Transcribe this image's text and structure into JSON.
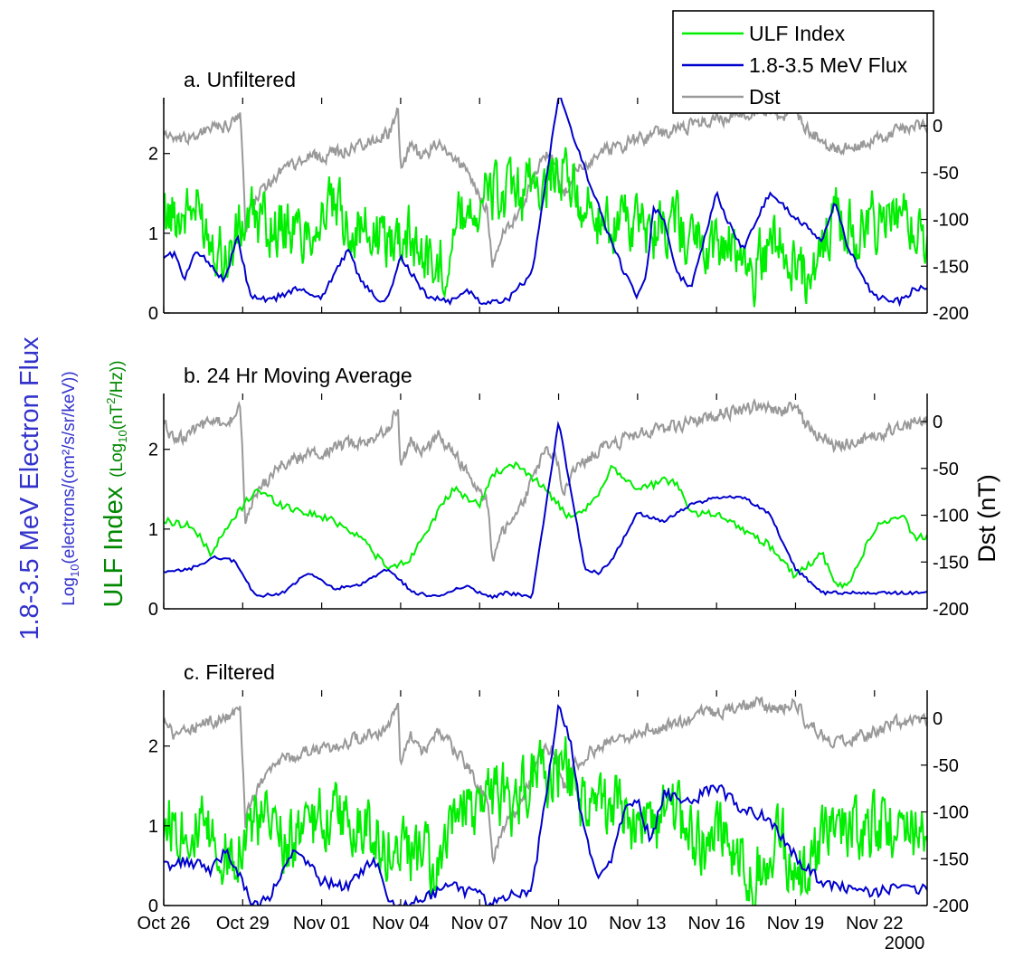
{
  "legend": {
    "placement": "top-right",
    "items": [
      {
        "label": "ULF Index",
        "color": "#00ee00"
      },
      {
        "label": "1.8-3.5 MeV Flux",
        "color": "#0000cc"
      },
      {
        "label": "Dst",
        "color": "#999999"
      }
    ]
  },
  "axes_text": {
    "flux_label": "1.8-3.5 MeV Electron Flux",
    "flux_units_pre": "Log",
    "flux_units_sub": "10",
    "flux_units_post": "(electrons/(cm²/s/sr/keV))",
    "ulf_label": "ULF Index",
    "ulf_units_pre": "(Log",
    "ulf_units_sub": "10",
    "ulf_units_mid": "(nT",
    "ulf_units_sup": "2",
    "ulf_units_post": "/Hz))",
    "dst_label": "Dst (nT)",
    "year_label": "2000"
  },
  "colors": {
    "ulf": "#00ee00",
    "flux": "#0000cc",
    "dst": "#999999",
    "ulf_label": "#008800",
    "flux_label": "#3333cc"
  },
  "chart_data": [
    {
      "type": "line",
      "title": "a. Unfiltered",
      "x_ticks": [
        "Oct 26",
        "Oct 29",
        "Nov 01",
        "Nov 04",
        "Nov 07",
        "Nov 10",
        "Nov 13",
        "Nov 16",
        "Nov 19",
        "Nov 22"
      ],
      "left_yticks": [
        "0",
        "1",
        "2"
      ],
      "right_yticks": [
        "0",
        "-50",
        "-100",
        "-150",
        "-200"
      ],
      "left_ylim": [
        0,
        2.7
      ],
      "right_ylim": [
        -200,
        30
      ],
      "series": [
        {
          "name": "ULF Index",
          "axis": "left",
          "style": "noisy",
          "x": [
            0,
            1.2,
            2.4,
            3.2,
            4,
            5.2,
            6.3,
            7.2,
            8.3,
            9.3,
            10.4,
            11.4,
            12.5,
            13.2,
            14,
            15.2,
            16.4,
            17.2,
            18.3,
            19.3,
            20.6,
            21.4,
            22.4,
            23.2,
            24.4,
            25.5,
            26.5,
            27.4,
            28.5
          ],
          "values": [
            1.2,
            1.3,
            0.7,
            1.2,
            1.1,
            1.0,
            1.3,
            1.1,
            0.9,
            1.0,
            0.5,
            1.3,
            1.5,
            1.4,
            1.6,
            1.8,
            1.1,
            1.2,
            1.0,
            1.2,
            0.8,
            0.9,
            0.5,
            1.0,
            0.4,
            1.2,
            1.0,
            1.2,
            1.0
          ],
          "amp": 0.38
        },
        {
          "name": "1.8-3.5 MeV Flux",
          "axis": "left",
          "style": "smooth",
          "x": [
            0,
            0.4,
            0.8,
            1.2,
            1.8,
            2.3,
            2.8,
            3.3,
            4,
            5,
            6,
            7,
            7.5,
            8,
            8.5,
            9,
            10,
            11,
            11.5,
            12,
            13,
            14,
            15,
            16,
            17,
            17.5,
            18,
            18.3,
            18.6,
            19,
            19.5,
            20,
            21,
            21.5,
            22,
            23,
            24,
            25,
            25.5,
            26,
            27,
            28,
            28.5
          ],
          "values": [
            0.7,
            0.75,
            0.4,
            0.8,
            0.6,
            0.4,
            0.95,
            0.2,
            0.15,
            0.3,
            0.2,
            0.8,
            0.4,
            0.2,
            0.15,
            0.7,
            0.2,
            0.15,
            0.3,
            0.15,
            0.15,
            0.5,
            2.75,
            1.8,
            0.9,
            0.5,
            0.2,
            0.4,
            1.3,
            1.2,
            0.5,
            0.3,
            1.5,
            1.1,
            0.8,
            1.5,
            1.2,
            0.9,
            1.4,
            0.8,
            0.2,
            0.15,
            0.3
          ],
          "amp": 0.04
        },
        {
          "name": "Dst",
          "axis": "right",
          "style": "noisy",
          "x": [
            0,
            0.5,
            1.5,
            2.5,
            2.9,
            3.0,
            3.1,
            3.3,
            3.7,
            4.5,
            5.5,
            6.5,
            7.5,
            8.5,
            8.9,
            9.0,
            9.1,
            9.4,
            9.8,
            10.5,
            11.5,
            12.3,
            12.5,
            12.8,
            13.4,
            14.5,
            14.9,
            15.0,
            15.2,
            15.6,
            16.5,
            17.5,
            18.5,
            19.5,
            20.5,
            21.5,
            22.5,
            23.5,
            24.0,
            24.3,
            24.7,
            25.5,
            26.5,
            27.5,
            28.5
          ],
          "values": [
            -5,
            -20,
            -5,
            0,
            15,
            -40,
            -110,
            -90,
            -70,
            -45,
            -35,
            -30,
            -20,
            -10,
            15,
            -50,
            -40,
            -20,
            -35,
            -15,
            -50,
            -90,
            -150,
            -120,
            -100,
            -30,
            -35,
            -50,
            -75,
            -50,
            -30,
            -20,
            -10,
            -5,
            5,
            10,
            15,
            10,
            20,
            0,
            -10,
            -25,
            -20,
            -10,
            0
          ],
          "amp": 7
        }
      ]
    },
    {
      "type": "line",
      "title": "b. 24 Hr Moving Average",
      "x_ticks": [
        "Oct 26",
        "Oct 29",
        "Nov 01",
        "Nov 04",
        "Nov 07",
        "Nov 10",
        "Nov 13",
        "Nov 16",
        "Nov 19",
        "Nov 22"
      ],
      "left_yticks": [
        "0",
        "1",
        "2"
      ],
      "right_yticks": [
        "0",
        "-50",
        "-100",
        "-150",
        "-200"
      ],
      "left_ylim": [
        0,
        2.7
      ],
      "right_ylim": [
        -200,
        30
      ],
      "series": [
        {
          "name": "ULF Index",
          "axis": "left",
          "style": "smooth",
          "x": [
            0,
            1,
            1.8,
            2.8,
            3.5,
            4.5,
            5.5,
            6.5,
            7.5,
            8.5,
            9.3,
            10,
            11,
            12,
            12.5,
            13.5,
            14.5,
            15.5,
            16.5,
            17,
            18,
            19,
            19.5,
            20,
            21,
            22,
            23,
            24,
            25,
            25.5,
            26,
            27,
            28,
            28.5
          ],
          "values": [
            1.1,
            1.05,
            0.7,
            1.2,
            1.5,
            1.3,
            1.2,
            1.1,
            0.9,
            0.5,
            0.6,
            1.0,
            1.5,
            1.3,
            1.7,
            1.8,
            1.5,
            1.1,
            1.4,
            1.8,
            1.5,
            1.6,
            1.6,
            1.2,
            1.2,
            1.0,
            0.8,
            0.4,
            0.7,
            0.3,
            0.3,
            1.0,
            1.2,
            0.9
          ],
          "amp": 0.05
        },
        {
          "name": "1.8-3.5 MeV Flux",
          "axis": "left",
          "style": "smooth",
          "x": [
            0,
            1,
            2,
            2.7,
            3.5,
            4.5,
            5.5,
            6.5,
            7.5,
            8.5,
            9.5,
            10.5,
            11.5,
            12,
            12.5,
            13,
            14,
            15,
            16,
            16.5,
            17,
            18,
            19,
            20,
            21,
            22,
            23,
            24,
            25,
            26,
            27,
            28,
            28.5
          ],
          "values": [
            0.45,
            0.5,
            0.65,
            0.6,
            0.15,
            0.2,
            0.45,
            0.25,
            0.3,
            0.5,
            0.2,
            0.15,
            0.3,
            0.2,
            0.15,
            0.2,
            0.15,
            2.35,
            0.5,
            0.45,
            0.6,
            1.2,
            1.1,
            1.3,
            1.4,
            1.4,
            1.2,
            0.5,
            0.2,
            0.2,
            0.2,
            0.2,
            0.2
          ],
          "amp": 0.02
        },
        {
          "name": "Dst",
          "axis": "right",
          "style": "noisy",
          "x": [
            0,
            0.5,
            1.5,
            2.5,
            2.9,
            3.0,
            3.1,
            3.3,
            3.7,
            4.5,
            5.5,
            6.5,
            7.5,
            8.5,
            8.9,
            9.0,
            9.1,
            9.4,
            9.8,
            10.5,
            11.5,
            12.3,
            12.5,
            12.8,
            13.4,
            14.5,
            14.9,
            15.0,
            15.2,
            15.6,
            16.5,
            17.5,
            18.5,
            19.5,
            20.5,
            21.5,
            22.5,
            23.5,
            24.0,
            24.3,
            24.7,
            25.5,
            26.5,
            27.5,
            28.5
          ],
          "values": [
            -5,
            -20,
            -5,
            0,
            15,
            -40,
            -110,
            -90,
            -70,
            -45,
            -35,
            -30,
            -20,
            -10,
            15,
            -50,
            -40,
            -20,
            -35,
            -15,
            -50,
            -90,
            -150,
            -120,
            -100,
            -30,
            -35,
            -50,
            -75,
            -50,
            -30,
            -20,
            -10,
            -5,
            5,
            10,
            15,
            10,
            20,
            0,
            -10,
            -25,
            -20,
            -10,
            0
          ],
          "amp": 7
        }
      ]
    },
    {
      "type": "line",
      "title": "c. Filtered",
      "x_ticks": [
        "Oct 26",
        "Oct 29",
        "Nov 01",
        "Nov 04",
        "Nov 07",
        "Nov 10",
        "Nov 13",
        "Nov 16",
        "Nov 19",
        "Nov 22"
      ],
      "left_yticks": [
        "0",
        "1",
        "2"
      ],
      "right_yticks": [
        "0",
        "-50",
        "-100",
        "-150",
        "-200"
      ],
      "left_ylim": [
        0,
        2.7
      ],
      "right_ylim": [
        -200,
        30
      ],
      "series": [
        {
          "name": "ULF Index",
          "axis": "left",
          "style": "noisy",
          "x": [
            0,
            1.2,
            2.4,
            3.2,
            4,
            5.2,
            6.3,
            7.2,
            8.3,
            9.3,
            10.4,
            11.4,
            12.5,
            13.2,
            14,
            15.2,
            16.4,
            17.2,
            18.3,
            19.3,
            20.6,
            21.4,
            22.4,
            23.2,
            24.4,
            25.5,
            26.5,
            27.4,
            28.5
          ],
          "values": [
            1.1,
            1.0,
            0.6,
            1.0,
            1.0,
            0.8,
            1.2,
            1.0,
            0.8,
            0.7,
            0.4,
            1.2,
            1.4,
            1.3,
            1.6,
            1.7,
            1.1,
            1.2,
            0.9,
            1.1,
            0.7,
            0.8,
            0.4,
            0.9,
            0.3,
            1.1,
            0.9,
            1.1,
            0.9
          ],
          "amp": 0.42
        },
        {
          "name": "1.8-3.5 MeV Flux",
          "axis": "left",
          "style": "smooth",
          "x": [
            0,
            1,
            1.8,
            2.4,
            3,
            3.3,
            3.6,
            4,
            5,
            6,
            7,
            8,
            8.5,
            9,
            10,
            11,
            11.5,
            12,
            12.3,
            13,
            14,
            15,
            15.5,
            15.8,
            16.5,
            17,
            17.5,
            18,
            18.5,
            19,
            20,
            21,
            22,
            23,
            24,
            25,
            26,
            27,
            28,
            28.5
          ],
          "values": [
            0.5,
            0.55,
            0.45,
            0.7,
            0.3,
            0.05,
            0.0,
            0.1,
            0.7,
            0.3,
            0.25,
            0.6,
            0.1,
            0.0,
            0.1,
            0.3,
            0.15,
            0.25,
            0.0,
            0.1,
            0.2,
            2.5,
            2.0,
            1.2,
            0.3,
            0.6,
            1.2,
            1.3,
            0.8,
            1.4,
            1.3,
            1.5,
            1.2,
            1.1,
            0.6,
            0.3,
            0.2,
            0.15,
            0.25,
            0.2
          ],
          "amp": 0.07
        },
        {
          "name": "Dst",
          "axis": "right",
          "style": "noisy",
          "x": [
            0,
            0.5,
            1.5,
            2.5,
            2.9,
            3.0,
            3.1,
            3.3,
            3.7,
            4.5,
            5.5,
            6.5,
            7.5,
            8.5,
            8.9,
            9.0,
            9.1,
            9.4,
            9.8,
            10.5,
            11.5,
            12.3,
            12.5,
            12.8,
            13.4,
            14.5,
            14.9,
            15.0,
            15.2,
            15.6,
            16.5,
            17.5,
            18.5,
            19.5,
            20.5,
            21.5,
            22.5,
            23.5,
            24.0,
            24.3,
            24.7,
            25.5,
            26.5,
            27.5,
            28.5
          ],
          "values": [
            -5,
            -20,
            -5,
            0,
            15,
            -40,
            -110,
            -90,
            -70,
            -45,
            -35,
            -30,
            -20,
            -10,
            15,
            -50,
            -40,
            -20,
            -35,
            -15,
            -50,
            -90,
            -150,
            -120,
            -100,
            -30,
            -35,
            -50,
            -75,
            -50,
            -30,
            -20,
            -10,
            -5,
            5,
            10,
            15,
            10,
            20,
            0,
            -10,
            -25,
            -20,
            -10,
            0
          ],
          "amp": 7
        }
      ]
    }
  ]
}
